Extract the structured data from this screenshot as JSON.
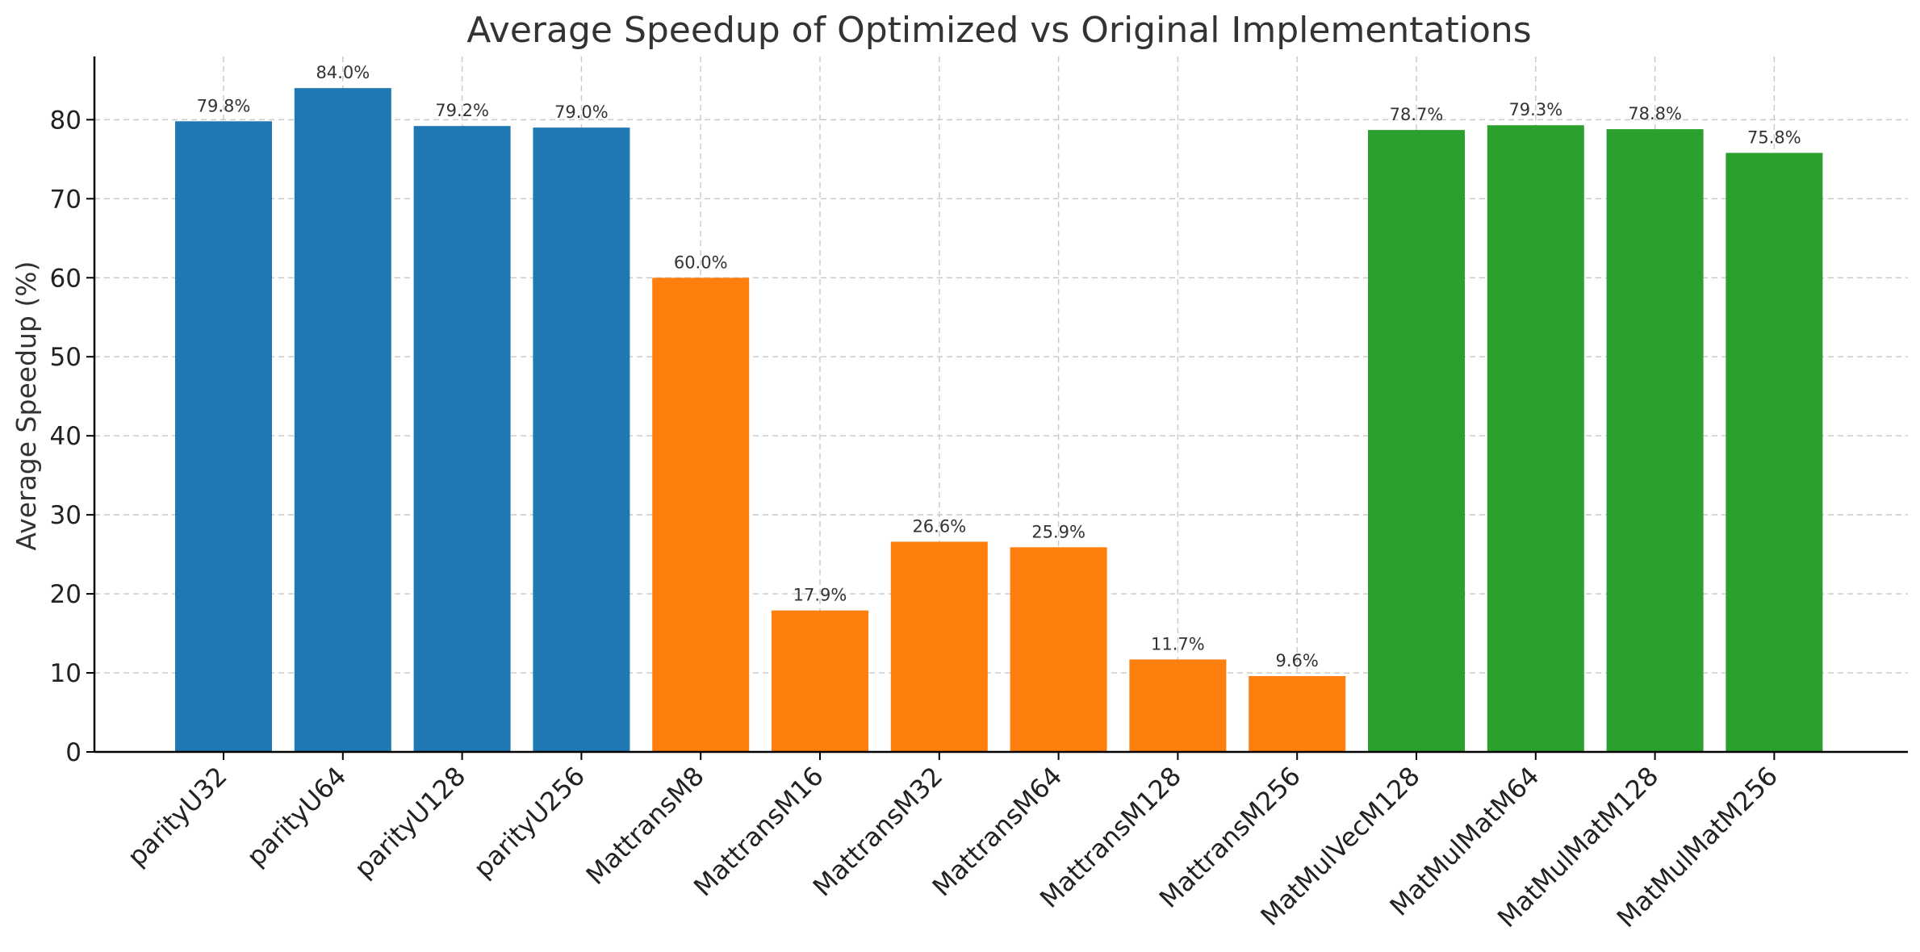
{
  "chart_data": {
    "type": "bar",
    "title": "Average Speedup of Optimized vs Original Implementations",
    "xlabel": "",
    "ylabel": "Average Speedup (%)",
    "ylim": [
      0,
      88
    ],
    "yticks": [
      0,
      10,
      20,
      30,
      40,
      50,
      60,
      70,
      80
    ],
    "grid": true,
    "legend": "none",
    "value_label_format": "{v}%",
    "categories": [
      "parityU32",
      "parityU64",
      "parityU128",
      "parityU256",
      "MattransM8",
      "MattransM16",
      "MattransM32",
      "MattransM64",
      "MattransM128",
      "MattransM256",
      "MatMulVecM128",
      "MatMulMatM64",
      "MatMulMatM128",
      "MatMulMatM256"
    ],
    "values": [
      79.8,
      84.0,
      79.2,
      79.0,
      60.0,
      17.9,
      26.6,
      25.9,
      11.7,
      9.6,
      78.7,
      79.3,
      78.8,
      75.8
    ],
    "value_labels": [
      "79.8%",
      "84.0%",
      "79.2%",
      "79.0%",
      "60.0%",
      "17.9%",
      "26.6%",
      "25.9%",
      "11.7%",
      "9.6%",
      "78.7%",
      "79.3%",
      "78.8%",
      "75.8%"
    ],
    "colors": [
      "#1f77b4",
      "#1f77b4",
      "#1f77b4",
      "#1f77b4",
      "#ff7f0e",
      "#ff7f0e",
      "#ff7f0e",
      "#ff7f0e",
      "#ff7f0e",
      "#ff7f0e",
      "#2ca02c",
      "#2ca02c",
      "#2ca02c",
      "#2ca02c"
    ]
  }
}
